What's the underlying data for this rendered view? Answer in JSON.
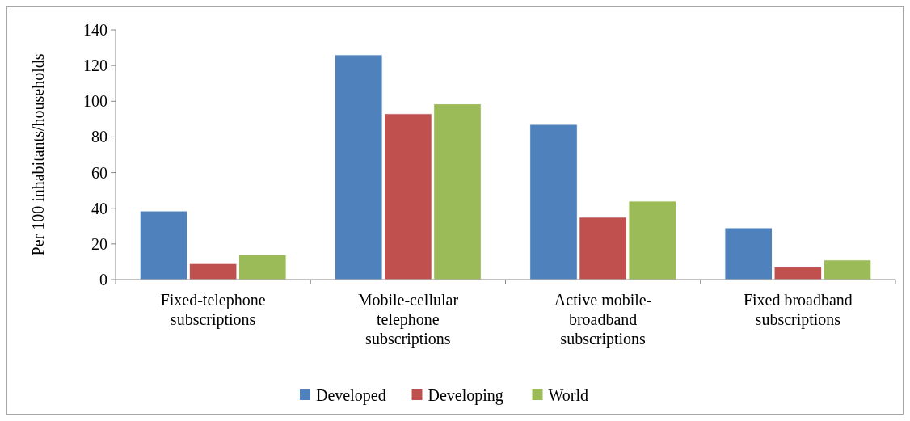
{
  "chart_data": {
    "type": "bar",
    "ylabel": "Per 100 inhabitants/households",
    "categories": [
      "Fixed-telephone subscriptions",
      "Mobile-cellular telephone subscriptions",
      "Active mobile-broadband subscriptions",
      "Fixed broadband subscriptions"
    ],
    "series": [
      {
        "name": "Developed",
        "color": "#4f81bd",
        "values": [
          38.5,
          126,
          87,
          29
        ]
      },
      {
        "name": "Developing",
        "color": "#c0504d",
        "values": [
          9,
          93,
          35,
          7
        ]
      },
      {
        "name": "World",
        "color": "#9bbb59",
        "values": [
          14,
          98.5,
          44,
          11
        ]
      }
    ],
    "ylim": [
      0,
      140
    ],
    "yticks": [
      0,
      20,
      40,
      60,
      80,
      100,
      120,
      140
    ],
    "grid": false,
    "legend": "bottom"
  }
}
